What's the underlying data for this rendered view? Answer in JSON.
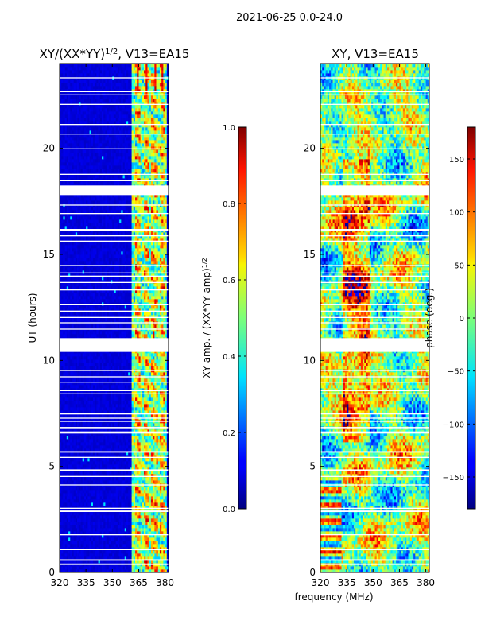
{
  "figure_title": "2021-06-25 0.0-24.0",
  "shared_xlabel": "frequency (MHz)",
  "chart_data": [
    {
      "type": "heatmap",
      "title": "XY/(XX*YY)",
      "title_exponent": "1/2",
      "title_suffix": ", V13=EA15",
      "xlabel": "",
      "ylabel": "UT (hours)",
      "xlim": [
        320,
        382
      ],
      "ylim": [
        0,
        24
      ],
      "xticks": [
        320,
        335,
        350,
        365,
        380
      ],
      "yticks": [
        0,
        5,
        10,
        15,
        20
      ],
      "colormap": "jet",
      "colorbar": {
        "label": "XY amp. / (XX*YY amp)",
        "label_exponent": "1/2",
        "range": [
          0.0,
          1.0
        ],
        "ticks": [
          "0.0",
          "0.2",
          "0.4",
          "0.6",
          "0.8",
          "1.0"
        ]
      },
      "description": "Mostly low amplitude (~0.05-0.1) across band; high amplitude (0.4-0.9) only in 361-381 MHz channels; many flagged (white) time rows; large gap ~10.4-11.0 h and ~17.8-18.3 h."
    },
    {
      "type": "heatmap",
      "title": "XY, V13=EA15",
      "xlabel": "",
      "ylabel": "",
      "xlim": [
        320,
        382
      ],
      "ylim": [
        0,
        24
      ],
      "xticks": [
        320,
        335,
        350,
        365,
        380
      ],
      "yticks": [
        0,
        5,
        10,
        15,
        20
      ],
      "colormap": "jet",
      "colorbar": {
        "label": "phase (deg.)",
        "range": [
          -180,
          180
        ],
        "ticks": [
          "−150",
          "−100",
          "−50",
          "0",
          "50",
          "100",
          "150"
        ],
        "tick_values": [
          -150,
          -100,
          -50,
          0,
          50,
          100,
          150
        ]
      },
      "description": "Phase fluctuates broadly between -180 and 180 deg with frequency-dependent banded structure; same flagged rows as amplitude panel."
    }
  ],
  "flagged_rows_hours": [
    [
      0.35,
      0.42
    ],
    [
      0.55,
      0.62
    ],
    [
      1.05,
      1.1
    ],
    [
      1.75,
      1.8
    ],
    [
      2.85,
      2.92
    ],
    [
      3.0,
      3.05
    ],
    [
      4.1,
      4.15
    ],
    [
      4.5,
      4.55
    ],
    [
      4.8,
      4.86
    ],
    [
      5.4,
      5.45
    ],
    [
      5.65,
      5.72
    ],
    [
      6.55,
      6.65
    ],
    [
      6.8,
      6.86
    ],
    [
      7.1,
      7.15
    ],
    [
      7.25,
      7.3
    ],
    [
      7.45,
      7.5
    ],
    [
      8.4,
      8.45
    ],
    [
      8.55,
      8.6
    ],
    [
      8.95,
      9.0
    ],
    [
      9.2,
      9.25
    ],
    [
      9.5,
      9.55
    ],
    [
      10.4,
      11.05
    ],
    [
      11.45,
      11.5
    ],
    [
      11.75,
      11.8
    ],
    [
      12.0,
      12.05
    ],
    [
      12.3,
      12.35
    ],
    [
      12.6,
      12.65
    ],
    [
      13.3,
      13.35
    ],
    [
      13.65,
      13.7
    ],
    [
      13.95,
      14.0
    ],
    [
      14.1,
      14.15
    ],
    [
      14.45,
      14.5
    ],
    [
      15.6,
      15.65
    ],
    [
      15.85,
      15.9
    ],
    [
      16.1,
      16.2
    ],
    [
      16.9,
      16.95
    ],
    [
      17.3,
      17.35
    ],
    [
      17.8,
      18.25
    ],
    [
      18.45,
      18.5
    ],
    [
      18.75,
      18.8
    ],
    [
      19.95,
      20.0
    ],
    [
      20.65,
      20.7
    ],
    [
      21.1,
      21.15
    ],
    [
      22.05,
      22.1
    ],
    [
      22.5,
      22.55
    ],
    [
      22.65,
      22.72
    ],
    [
      23.3,
      23.35
    ]
  ]
}
